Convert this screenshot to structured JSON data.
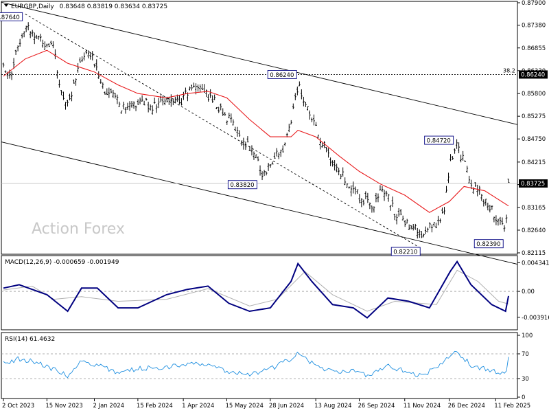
{
  "chart_data": {
    "type": "candlestick",
    "symbol": "EURGBP,Daily",
    "ohlc_header": "0.83648 0.83819 0.83634 0.83725",
    "watermark": "Action Forex",
    "colors": {
      "price_bars": "#000000",
      "moving_average": "#e8191b",
      "trendlines": "#000000",
      "macd_line": "#000080",
      "macd_signal": "#b0b0b0",
      "rsi_line": "#1e8fe0",
      "annotation_border": "#000080",
      "background": "#ffffff"
    },
    "x_ticks": [
      "2 Oct 2023",
      "15 Nov 2023",
      "2 Jan 2024",
      "15 Feb 2024",
      "1 Apr 2024",
      "15 May 2024",
      "28 Jun 2024",
      "13 Aug 2024",
      "26 Sep 2024",
      "11 Nov 2024",
      "26 Dec 2024",
      "11 Feb 2025"
    ],
    "price_panel": {
      "ylim": [
        0.82115,
        0.879
      ],
      "y_ticks": [
        "0.87900",
        "0.87380",
        "0.86855",
        "0.86330",
        "0.85800",
        "0.85275",
        "0.84750",
        "0.84215",
        "0.83695",
        "0.83165",
        "0.82640",
        "0.82115"
      ],
      "current_price_label": "0.83725",
      "fib_level": {
        "label": "38.2",
        "value_label": "0.86240",
        "value": 0.8624
      },
      "annotations": [
        {
          "label": "0.87640",
          "date": "24 Oct 2023",
          "value": 0.8764
        },
        {
          "label": "0.86240",
          "date": "26 Jul 2024",
          "value": 0.8624
        },
        {
          "label": "0.83820",
          "date": "20 Jun 2024",
          "value": 0.8382
        },
        {
          "label": "0.84720",
          "date": "2 Jan 2025",
          "value": 0.8472
        },
        {
          "label": "0.82210",
          "date": "28 Nov 2024",
          "value": 0.8221
        },
        {
          "label": "0.82390",
          "date": "20 Feb 2025",
          "value": 0.8239
        }
      ],
      "series_close": [
        [
          "2 Oct 2023",
          0.864
        ],
        [
          "10 Oct 2023",
          0.863
        ],
        [
          "18 Oct 2023",
          0.87
        ],
        [
          "24 Oct 2023",
          0.874
        ],
        [
          "31 Oct 2023",
          0.872
        ],
        [
          "7 Nov 2023",
          0.871
        ],
        [
          "15 Nov 2023",
          0.8695
        ],
        [
          "22 Nov 2023",
          0.868
        ],
        [
          "29 Nov 2023",
          0.858
        ],
        [
          "6 Dec 2023",
          0.856
        ],
        [
          "13 Dec 2023",
          0.86
        ],
        [
          "20 Dec 2023",
          0.866
        ],
        [
          "28 Dec 2023",
          0.867
        ],
        [
          "5 Jan 2024",
          0.864
        ],
        [
          "12 Jan 2024",
          0.859
        ],
        [
          "19 Jan 2024",
          0.8575
        ],
        [
          "26 Jan 2024",
          0.856
        ],
        [
          "2 Feb 2024",
          0.854
        ],
        [
          "9 Feb 2024",
          0.855
        ],
        [
          "16 Feb 2024",
          0.856
        ],
        [
          "23 Feb 2024",
          0.856
        ],
        [
          "1 Mar 2024",
          0.855
        ],
        [
          "8 Mar 2024",
          0.856
        ],
        [
          "15 Mar 2024",
          0.8555
        ],
        [
          "22 Mar 2024",
          0.857
        ],
        [
          "29 Mar 2024",
          0.856
        ],
        [
          "5 Apr 2024",
          0.858
        ],
        [
          "12 Apr 2024",
          0.86
        ],
        [
          "19 Apr 2024",
          0.8595
        ],
        [
          "26 Apr 2024",
          0.8575
        ],
        [
          "3 May 2024",
          0.856
        ],
        [
          "10 May 2024",
          0.854
        ],
        [
          "17 May 2024",
          0.852
        ],
        [
          "24 May 2024",
          0.85
        ],
        [
          "31 May 2024",
          0.847
        ],
        [
          "7 Jun 2024",
          0.846
        ],
        [
          "14 Jun 2024",
          0.843
        ],
        [
          "21 Jun 2024",
          0.839
        ],
        [
          "28 Jun 2024",
          0.842
        ],
        [
          "5 Jul 2024",
          0.844
        ],
        [
          "12 Jul 2024",
          0.845
        ],
        [
          "19 Jul 2024",
          0.852
        ],
        [
          "26 Jul 2024",
          0.86
        ],
        [
          "2 Aug 2024",
          0.856
        ],
        [
          "9 Aug 2024",
          0.852
        ],
        [
          "16 Aug 2024",
          0.848
        ],
        [
          "23 Aug 2024",
          0.845
        ],
        [
          "30 Aug 2024",
          0.842
        ],
        [
          "6 Sep 2024",
          0.84
        ],
        [
          "13 Sep 2024",
          0.838
        ],
        [
          "20 Sep 2024",
          0.836
        ],
        [
          "27 Sep 2024",
          0.834
        ],
        [
          "4 Oct 2024",
          0.833
        ],
        [
          "11 Oct 2024",
          0.832
        ],
        [
          "18 Oct 2024",
          0.835
        ],
        [
          "25 Oct 2024",
          0.835
        ],
        [
          "1 Nov 2024",
          0.83
        ],
        [
          "8 Nov 2024",
          0.829
        ],
        [
          "15 Nov 2024",
          0.828
        ],
        [
          "22 Nov 2024",
          0.827
        ],
        [
          "29 Nov 2024",
          0.824
        ],
        [
          "6 Dec 2024",
          0.827
        ],
        [
          "13 Dec 2024",
          0.828
        ],
        [
          "20 Dec 2024",
          0.83
        ],
        [
          "27 Dec 2024",
          0.842
        ],
        [
          "3 Jan 2025",
          0.846
        ],
        [
          "10 Jan 2025",
          0.842
        ],
        [
          "17 Jan 2025",
          0.837
        ],
        [
          "24 Jan 2025",
          0.836
        ],
        [
          "31 Jan 2025",
          0.833
        ],
        [
          "7 Feb 2025",
          0.831
        ],
        [
          "14 Feb 2025",
          0.828
        ],
        [
          "21 Feb 2025",
          0.827
        ],
        [
          "24 Feb 2025",
          0.8372
        ]
      ],
      "moving_average": [
        [
          "2 Oct 2023",
          0.862
        ],
        [
          "24 Oct 2023",
          0.866
        ],
        [
          "15 Nov 2023",
          0.868
        ],
        [
          "6 Dec 2023",
          0.865
        ],
        [
          "2 Jan 2024",
          0.863
        ],
        [
          "26 Jan 2024",
          0.86
        ],
        [
          "15 Feb 2024",
          0.858
        ],
        [
          "15 Mar 2024",
          0.857
        ],
        [
          "5 Apr 2024",
          0.858
        ],
        [
          "26 Apr 2024",
          0.8585
        ],
        [
          "15 May 2024",
          0.857
        ],
        [
          "7 Jun 2024",
          0.852
        ],
        [
          "28 Jun 2024",
          0.848
        ],
        [
          "19 Jul 2024",
          0.848
        ],
        [
          "26 Jul 2024",
          0.8495
        ],
        [
          "13 Aug 2024",
          0.848
        ],
        [
          "6 Sep 2024",
          0.8435
        ],
        [
          "26 Sep 2024",
          0.84
        ],
        [
          "18 Oct 2024",
          0.837
        ],
        [
          "11 Nov 2024",
          0.8345
        ],
        [
          "6 Dec 2024",
          0.8305
        ],
        [
          "26 Dec 2024",
          0.833
        ],
        [
          "10 Jan 2025",
          0.8365
        ],
        [
          "31 Jan 2025",
          0.8355
        ],
        [
          "24 Feb 2025",
          0.832
        ]
      ],
      "channel_upper": [
        [
          "2 Oct 2023",
          0.879
        ],
        [
          "24 Feb 2025",
          0.8513
        ]
      ],
      "channel_lower": [
        [
          "2 Oct 2023",
          0.8467
        ],
        [
          "24 Feb 2025",
          0.819
        ]
      ],
      "inner_trendline": [
        [
          "24 Oct 2023",
          0.8764
        ],
        [
          "28 Nov 2024",
          0.8221
        ]
      ]
    },
    "macd_panel": {
      "label": "MACD(12,26,9) -0.000659 -0.001949",
      "ylim": [
        -0.0056,
        0.0052
      ],
      "y_ticks": [
        {
          "label": "0.004341",
          "value": 0.004341
        },
        {
          "label": "0.00",
          "value": 0.0
        },
        {
          "label": "-0.003916",
          "value": -0.003916
        }
      ],
      "macd": [
        [
          "2 Oct 2023",
          0.0005
        ],
        [
          "18 Oct 2023",
          0.001
        ],
        [
          "31 Oct 2023",
          0.0003
        ],
        [
          "15 Nov 2023",
          -0.0005
        ],
        [
          "6 Dec 2023",
          -0.003
        ],
        [
          "20 Dec 2023",
          0.0005
        ],
        [
          "5 Jan 2024",
          0.0005
        ],
        [
          "26 Jan 2024",
          -0.0025
        ],
        [
          "15 Feb 2024",
          -0.0025
        ],
        [
          "15 Mar 2024",
          -0.0005
        ],
        [
          "5 Apr 2024",
          0.0003
        ],
        [
          "26 Apr 2024",
          0.0008
        ],
        [
          "17 May 2024",
          -0.0018
        ],
        [
          "7 Jun 2024",
          -0.003
        ],
        [
          "28 Jun 2024",
          -0.0025
        ],
        [
          "19 Jul 2024",
          0.0015
        ],
        [
          "26 Jul 2024",
          0.0042
        ],
        [
          "9 Aug 2024",
          0.0015
        ],
        [
          "30 Aug 2024",
          -0.002
        ],
        [
          "20 Sep 2024",
          -0.0025
        ],
        [
          "4 Oct 2024",
          -0.004
        ],
        [
          "25 Oct 2024",
          -0.001
        ],
        [
          "15 Nov 2024",
          -0.0015
        ],
        [
          "6 Dec 2024",
          -0.0025
        ],
        [
          "27 Dec 2024",
          0.003
        ],
        [
          "3 Jan 2025",
          0.0045
        ],
        [
          "17 Jan 2025",
          0.001
        ],
        [
          "7 Feb 2025",
          -0.002
        ],
        [
          "21 Feb 2025",
          -0.003
        ],
        [
          "24 Feb 2025",
          -0.0007
        ]
      ],
      "signal": [
        [
          "2 Oct 2023",
          0.0002
        ],
        [
          "31 Oct 2023",
          0.0008
        ],
        [
          "22 Nov 2023",
          -0.0012
        ],
        [
          "20 Dec 2023",
          -0.0008
        ],
        [
          "26 Jan 2024",
          -0.0015
        ],
        [
          "15 Mar 2024",
          -0.0012
        ],
        [
          "26 Apr 2024",
          0.0004
        ],
        [
          "7 Jun 2024",
          -0.0022
        ],
        [
          "5 Jul 2024",
          -0.0012
        ],
        [
          "2 Aug 2024",
          0.003
        ],
        [
          "30 Aug 2024",
          -0.0005
        ],
        [
          "4 Oct 2024",
          -0.003
        ],
        [
          "1 Nov 2024",
          -0.0015
        ],
        [
          "13 Dec 2024",
          -0.002
        ],
        [
          "3 Jan 2025",
          0.0032
        ],
        [
          "24 Jan 2025",
          0.0015
        ],
        [
          "14 Feb 2025",
          -0.0015
        ],
        [
          "24 Feb 2025",
          -0.0019
        ]
      ]
    },
    "rsi_panel": {
      "label": "RSI(14) 61.4632",
      "ylim": [
        0,
        100
      ],
      "y_ticks": [
        {
          "label": "100",
          "value": 100
        },
        {
          "label": "70",
          "value": 70
        },
        {
          "label": "30",
          "value": 30
        },
        {
          "label": "0",
          "value": 0
        }
      ],
      "rsi": [
        [
          "2 Oct 2023",
          55
        ],
        [
          "18 Oct 2023",
          62
        ],
        [
          "31 Oct 2023",
          58
        ],
        [
          "15 Nov 2023",
          50
        ],
        [
          "6 Dec 2023",
          35
        ],
        [
          "20 Dec 2023",
          58
        ],
        [
          "5 Jan 2024",
          52
        ],
        [
          "26 Jan 2024",
          40
        ],
        [
          "15 Feb 2024",
          46
        ],
        [
          "15 Mar 2024",
          48
        ],
        [
          "5 Apr 2024",
          55
        ],
        [
          "26 Apr 2024",
          52
        ],
        [
          "17 May 2024",
          42
        ],
        [
          "7 Jun 2024",
          38
        ],
        [
          "28 Jun 2024",
          45
        ],
        [
          "19 Jul 2024",
          62
        ],
        [
          "26 Jul 2024",
          75
        ],
        [
          "9 Aug 2024",
          55
        ],
        [
          "30 Aug 2024",
          40
        ],
        [
          "20 Sep 2024",
          42
        ],
        [
          "4 Oct 2024",
          36
        ],
        [
          "25 Oct 2024",
          50
        ],
        [
          "15 Nov 2024",
          40
        ],
        [
          "29 Nov 2024",
          35
        ],
        [
          "13 Dec 2024",
          48
        ],
        [
          "27 Dec 2024",
          68
        ],
        [
          "3 Jan 2025",
          72
        ],
        [
          "17 Jan 2025",
          52
        ],
        [
          "7 Feb 2025",
          42
        ],
        [
          "21 Feb 2025",
          38
        ],
        [
          "24 Feb 2025",
          61.4632
        ]
      ]
    }
  }
}
